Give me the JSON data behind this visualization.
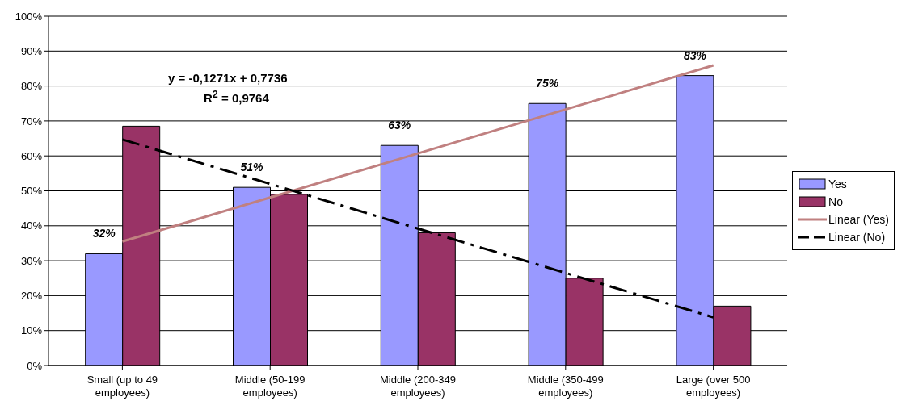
{
  "chart_data": {
    "type": "bar",
    "categories": [
      "Small (up to 49 employees)",
      "Middle (50-199 employees)",
      "Middle (200-349 employees)",
      "Middle (350-499 employees)",
      "Large (over 500 employees)"
    ],
    "series": [
      {
        "name": "Yes",
        "color": "#9999ff",
        "values": [
          32,
          51,
          63,
          75,
          83
        ],
        "value_labels": [
          "32%",
          "51%",
          "63%",
          "75%",
          "83%"
        ]
      },
      {
        "name": "No",
        "color": "#993366",
        "values": [
          68.5,
          49,
          38,
          25,
          17
        ]
      },
      {
        "name": "Linear (Yes)",
        "type": "line",
        "color": "#c08080",
        "line_style": "solid",
        "values": [
          35.5,
          48.1,
          60.7,
          73.3,
          85.9
        ]
      },
      {
        "name": "Linear (No)",
        "type": "line",
        "color": "#000000",
        "line_style": "dashed",
        "values": [
          64.7,
          52,
          39.2,
          26.5,
          13.8
        ]
      }
    ],
    "ylim": [
      0,
      100
    ],
    "yticks": [
      {
        "value": 0,
        "label": "0%"
      },
      {
        "value": 10,
        "label": "10%"
      },
      {
        "value": 20,
        "label": "20%"
      },
      {
        "value": 30,
        "label": "30%"
      },
      {
        "value": 40,
        "label": "40%"
      },
      {
        "value": 50,
        "label": "50%"
      },
      {
        "value": 60,
        "label": "60%"
      },
      {
        "value": 70,
        "label": "70%"
      },
      {
        "value": 80,
        "label": "80%"
      },
      {
        "value": 90,
        "label": "90%"
      },
      {
        "value": 100,
        "label": "100%"
      }
    ],
    "grid": "y",
    "legend": "right",
    "marker": "none",
    "annotations": [
      "y = -0,1271x + 0,7736",
      "R$^{2}$ = 0,9764"
    ]
  }
}
